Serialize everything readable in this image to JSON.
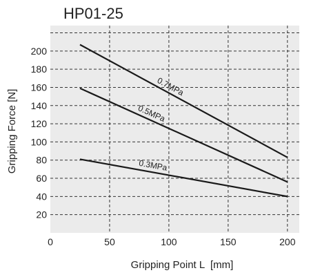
{
  "chart_data": {
    "type": "line",
    "title": "HP01-25",
    "xlabel": "Gripping Point L  [mm]",
    "ylabel": "Gripping Force [N]",
    "xlim": [
      0,
      210
    ],
    "ylim": [
      0,
      228
    ],
    "xticks": [
      0,
      50,
      100,
      150,
      200
    ],
    "yticks": [
      20,
      40,
      60,
      80,
      100,
      120,
      140,
      160,
      180,
      200
    ],
    "grid": true,
    "series": [
      {
        "name": "0.7MPa",
        "x": [
          25,
          200
        ],
        "y": [
          207,
          83
        ]
      },
      {
        "name": "0.5MPa",
        "x": [
          25,
          200
        ],
        "y": [
          159,
          56
        ]
      },
      {
        "name": "0.3MPa",
        "x": [
          25,
          200
        ],
        "y": [
          81,
          40
        ]
      }
    ]
  },
  "colors": {
    "plot_background": "#ebebeb",
    "line": "#1a1a1a",
    "grid": "#333333"
  }
}
